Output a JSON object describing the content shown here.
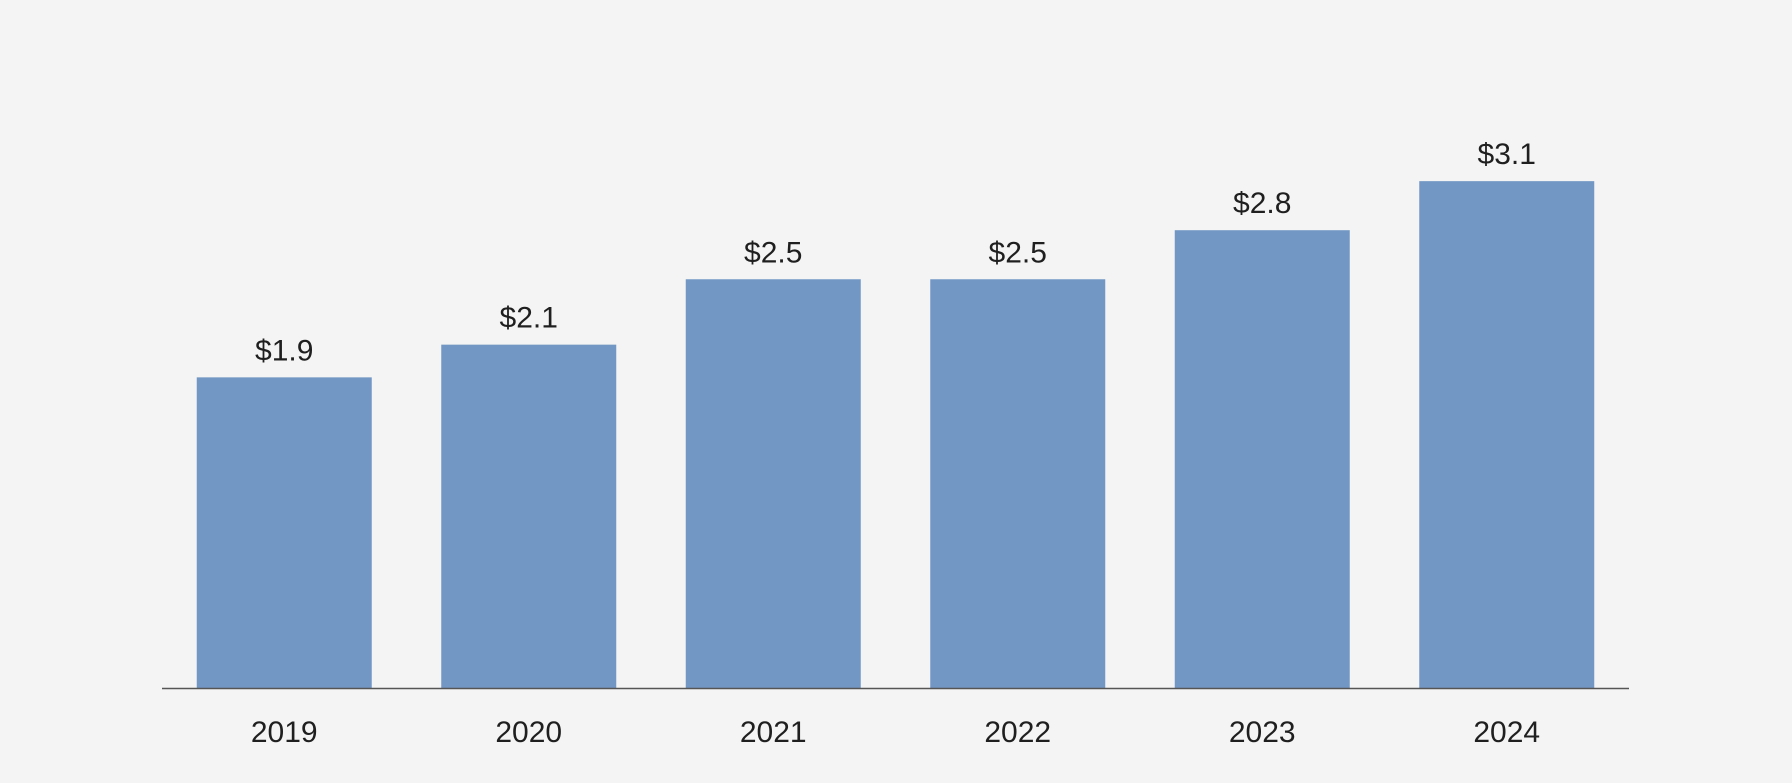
{
  "chart_data": {
    "type": "bar",
    "categories": [
      "2019",
      "2020",
      "2021",
      "2022",
      "2023",
      "2024"
    ],
    "values": [
      1.9,
      2.1,
      2.5,
      2.5,
      2.8,
      3.1
    ],
    "data_labels": [
      "$1.9",
      "$2.1",
      "$2.5",
      "$2.5",
      "$2.8",
      "$3.1"
    ],
    "title": "",
    "xlabel": "",
    "ylabel": "",
    "ylim": [
      0,
      3.5
    ],
    "grid": false,
    "legend": "none",
    "colors": {
      "bar": "#7397c4",
      "axis": "#555555",
      "text": "#1f1f1f",
      "background": "#f3f4f3"
    }
  }
}
